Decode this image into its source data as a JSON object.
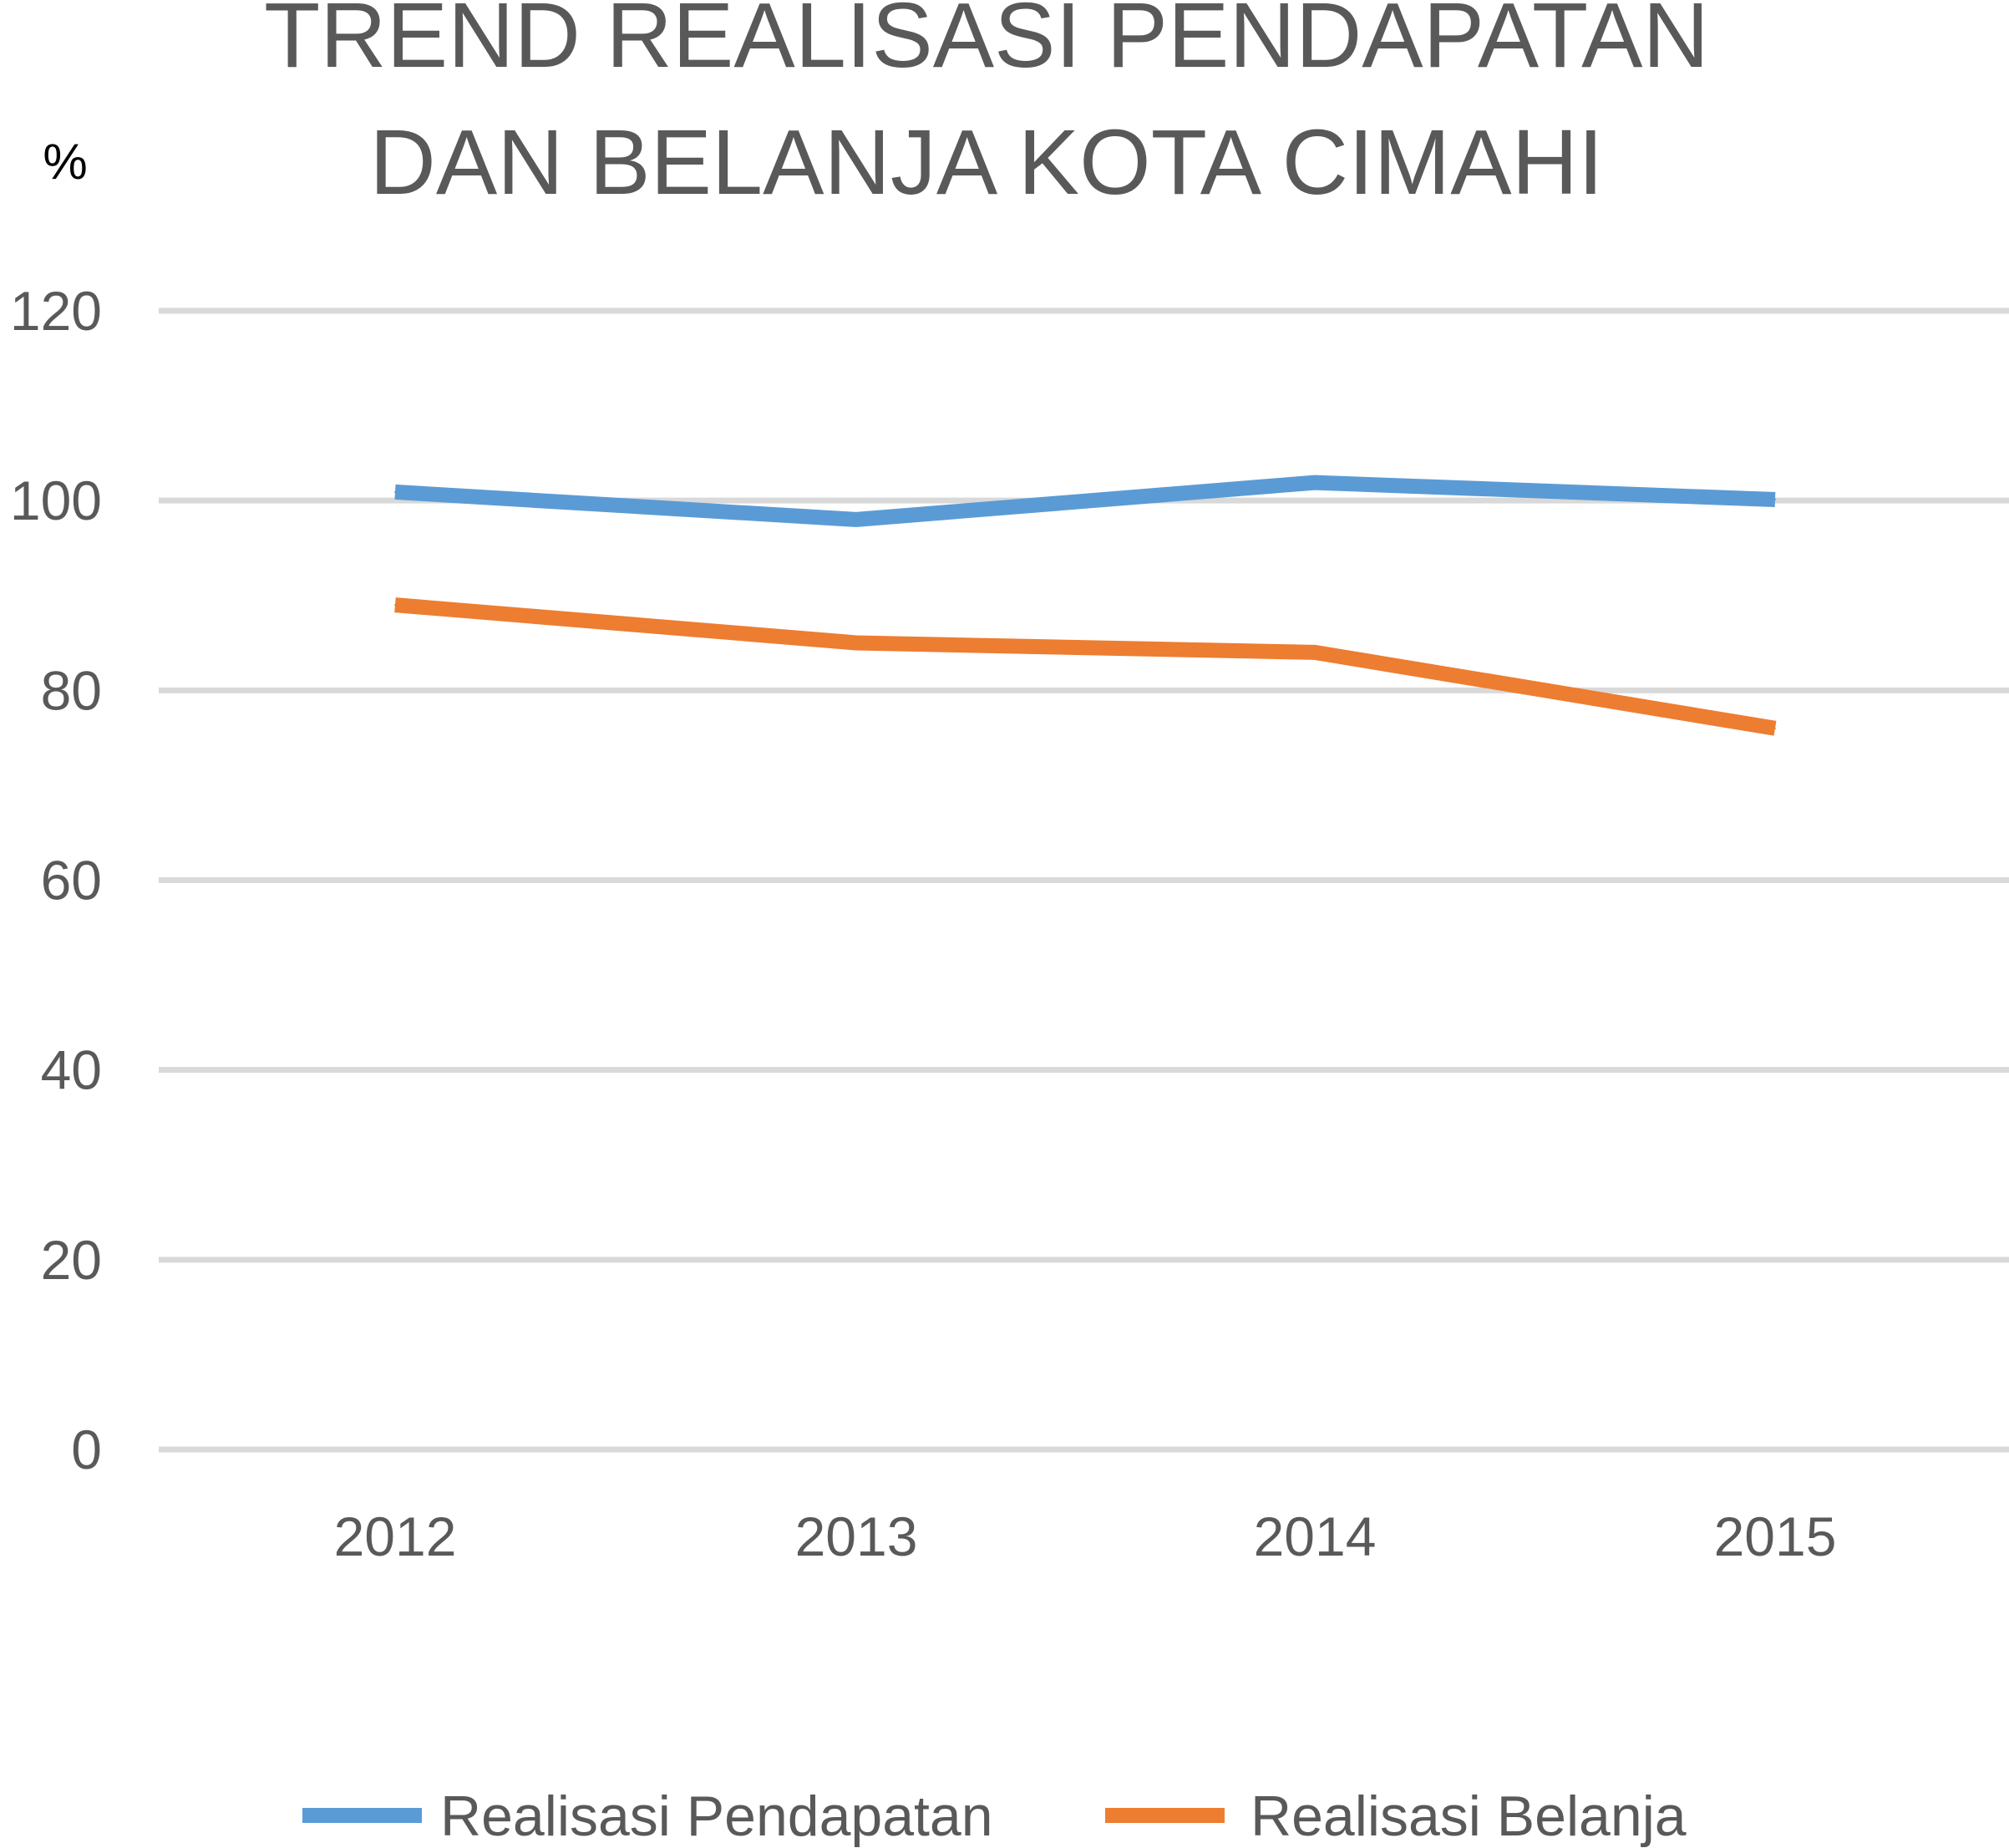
{
  "chart_data": {
    "type": "line",
    "title": [
      "TREND REALISASI PENDAPATAN",
      "DAN BELANJA KOTA CIMAHI"
    ],
    "ylabel": "%",
    "xlabel": "",
    "categories": [
      "2012",
      "2013",
      "2014",
      "2015"
    ],
    "ylim": [
      0,
      120
    ],
    "yticks": [
      "0",
      "20",
      "40",
      "60",
      "80",
      "100",
      "120"
    ],
    "grid": true,
    "legend_position": "bottom",
    "series": [
      {
        "name": "Realisasi Pendapatan",
        "color": "#5B9BD5",
        "values": [
          100.9,
          98.0,
          101.9,
          100.1
        ]
      },
      {
        "name": "Realisasi Belanja",
        "color": "#ED7D31",
        "values": [
          89.0,
          85.0,
          84.0,
          76.0
        ]
      }
    ]
  }
}
